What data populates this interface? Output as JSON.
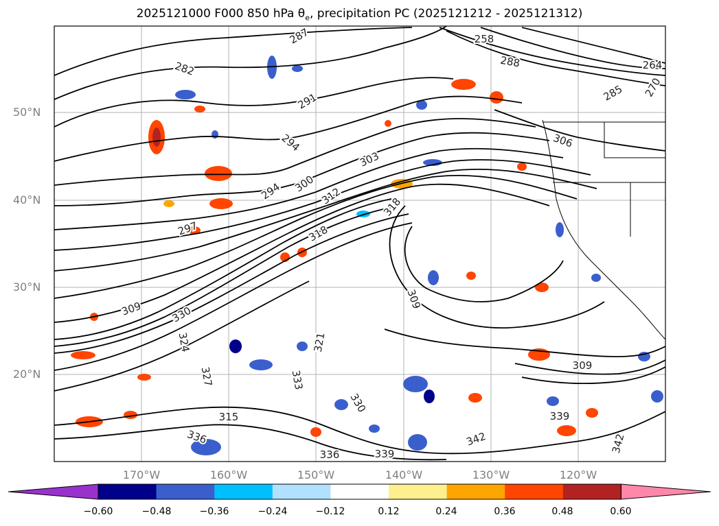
{
  "title_main": "2025121000 F000 850 hPa ",
  "title_theta": "θ",
  "title_sub": "e",
  "title_rest": ", precipitation PC (2025121212 - 2025121312)",
  "lat_labels": [
    "50°N",
    "40°N",
    "30°N",
    "20°N"
  ],
  "lon_labels": [
    "170°W",
    "160°W",
    "150°W",
    "140°W",
    "130°W",
    "120°W"
  ],
  "contour_labels": [
    "258",
    "264",
    "270",
    "282",
    "285",
    "287",
    "288",
    "291",
    "294",
    "294",
    "297",
    "300",
    "303",
    "306",
    "309",
    "309",
    "309",
    "312",
    "315",
    "318",
    "318",
    "321",
    "324",
    "327",
    "330",
    "330",
    "333",
    "336",
    "336",
    "339",
    "339",
    "342",
    "342"
  ],
  "colorbar": {
    "ticks": [
      "−0.60",
      "−0.48",
      "−0.36",
      "−0.24",
      "−0.12",
      "0.12",
      "0.24",
      "0.36",
      "0.48",
      "0.60"
    ],
    "colors": [
      "#9932cc",
      "#00008b",
      "#3a5fcd",
      "#00bfff",
      "#b0e2ff",
      "#ffffff",
      "#fff08f",
      "#ffa500",
      "#ff4500",
      "#b22222",
      "#ff88aa"
    ]
  }
}
